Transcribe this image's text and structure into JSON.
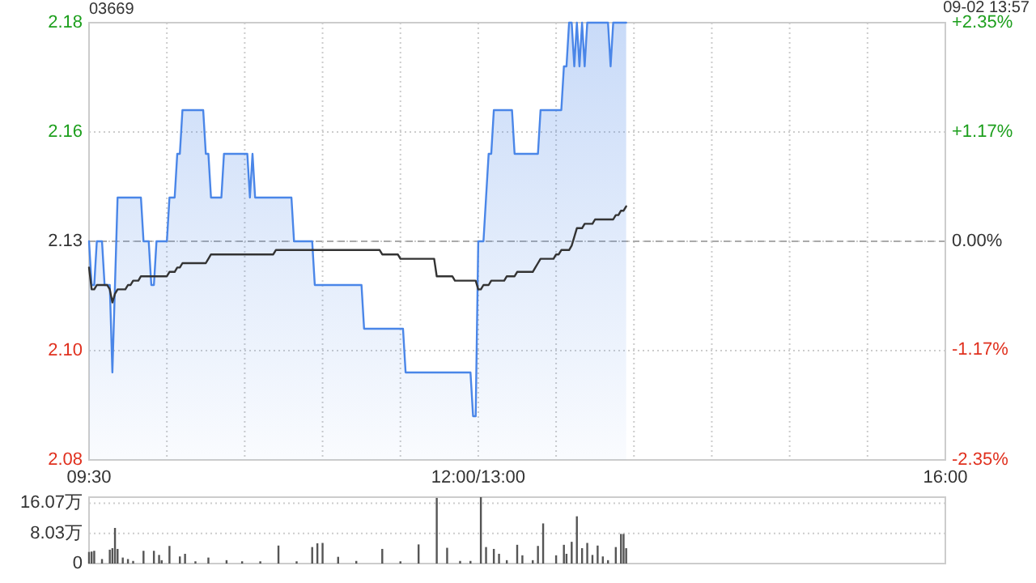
{
  "chart_data": [
    {
      "type": "area",
      "title": "03669",
      "subtitle": "09-02 13:57",
      "categories": [
        "09:30",
        null,
        null,
        null,
        null,
        null,
        null,
        null,
        null,
        null,
        null,
        null,
        null,
        null,
        null,
        null,
        null,
        null,
        null,
        null,
        null,
        null,
        null,
        null,
        null,
        null,
        null,
        null,
        null,
        null,
        null,
        null,
        null,
        null,
        null,
        null,
        null,
        null,
        null,
        null,
        null,
        null,
        null,
        null,
        null,
        null,
        null,
        null,
        null,
        null,
        null,
        null,
        null,
        null,
        null,
        null,
        null,
        null,
        null,
        null,
        null,
        null,
        null,
        null,
        null,
        null,
        null,
        null,
        null,
        null,
        null,
        null,
        null,
        null,
        null,
        null,
        null,
        null,
        null,
        null,
        null,
        null,
        null,
        null,
        null,
        null,
        null,
        null,
        null,
        null,
        null,
        null,
        null,
        null,
        null,
        null,
        null,
        null,
        null,
        null,
        null,
        null,
        null,
        null,
        null,
        null,
        null,
        null,
        null,
        null,
        null,
        null,
        null,
        null,
        null,
        null,
        null,
        null,
        null,
        null,
        null,
        null,
        null,
        null,
        null,
        null,
        null,
        null,
        null,
        null,
        null,
        null,
        null,
        null,
        null,
        null,
        null,
        null,
        null,
        null,
        null,
        null,
        null,
        null,
        null,
        null,
        null,
        null,
        null,
        null,
        "12:00/13:00",
        null,
        null,
        null,
        null,
        null,
        null,
        null,
        null,
        null,
        null,
        null,
        null,
        null,
        null,
        null,
        null,
        null,
        null,
        null,
        null,
        null,
        null,
        null,
        null,
        null,
        null,
        null,
        null,
        null,
        null,
        null,
        null,
        null,
        null,
        null,
        null,
        null,
        null,
        null,
        null,
        null,
        null,
        null,
        null,
        null,
        null,
        null,
        null,
        null,
        null,
        null,
        null,
        null,
        null,
        null,
        null,
        null,
        null,
        null,
        null,
        null,
        null,
        null,
        null,
        null,
        null,
        null,
        null,
        null,
        null,
        null,
        null,
        null,
        null,
        null,
        null,
        null,
        null,
        null,
        null,
        null,
        null,
        null,
        null,
        null,
        null,
        null,
        null,
        null,
        null,
        null,
        null,
        null,
        null,
        null,
        null,
        null,
        null,
        null,
        null,
        null,
        null,
        null,
        null,
        null,
        null,
        null,
        null,
        null,
        null,
        null,
        null,
        null,
        null,
        null,
        null,
        null,
        null,
        null,
        null,
        null,
        null,
        null,
        null,
        null,
        null,
        null,
        null,
        null,
        null,
        null,
        null,
        null,
        null,
        null,
        null,
        null,
        null,
        null,
        null,
        null,
        null,
        null,
        null,
        null,
        null,
        null,
        null,
        null,
        null,
        null,
        null,
        null,
        null,
        null,
        null,
        null,
        null,
        null,
        null,
        null,
        null,
        null,
        null,
        null,
        null,
        null,
        null,
        null,
        null,
        null,
        null,
        null,
        null,
        null,
        null,
        null,
        null,
        null,
        "16:00"
      ],
      "ylim": [
        2.08,
        2.18
      ],
      "yticks": [
        2.08,
        {
          "value": 2.105,
          "label": "2.10"
        },
        2.13,
        {
          "value": 2.155,
          "label": "2.16"
        },
        2.18
      ],
      "y2lim": [
        -2.35,
        2.35
      ],
      "y2ticks": [
        {
          "value": -2.35,
          "label": "-2.35%"
        },
        {
          "value": -1.17,
          "label": "-1.17%"
        },
        {
          "value": 0,
          "label": "0.00%"
        },
        {
          "value": 1.17,
          "label": "+1.17%"
        },
        {
          "value": 2.35,
          "label": "+2.35%"
        }
      ],
      "grid": true,
      "ref_lines": [
        {
          "axis": "y",
          "value": 2.13,
          "color": "#aaaaaa",
          "line_style": "dashed"
        }
      ],
      "series": [
        {
          "color": "#4a86e8",
          "values": [
            2.13,
            2.12,
            2.12,
            2.13,
            2.13,
            2.13,
            2.12,
            2.12,
            2.12,
            2.1,
            2.12,
            2.14,
            2.14,
            2.14,
            2.14,
            2.14,
            2.14,
            2.14,
            2.14,
            2.14,
            2.14,
            2.13,
            2.13,
            2.13,
            2.12,
            2.12,
            2.13,
            2.13,
            2.13,
            2.13,
            2.13,
            2.14,
            2.14,
            2.14,
            2.15,
            2.15,
            2.16,
            2.16,
            2.16,
            2.16,
            2.16,
            2.16,
            2.16,
            2.16,
            2.16,
            2.15,
            2.15,
            2.14,
            2.14,
            2.14,
            2.14,
            2.14,
            2.15,
            2.15,
            2.15,
            2.15,
            2.15,
            2.15,
            2.15,
            2.15,
            2.15,
            2.15,
            2.14,
            2.15,
            2.14,
            2.14,
            2.14,
            2.14,
            2.14,
            2.14,
            2.14,
            2.14,
            2.14,
            2.14,
            2.14,
            2.14,
            2.14,
            2.14,
            2.14,
            2.13,
            2.13,
            2.13,
            2.13,
            2.13,
            2.13,
            2.13,
            2.13,
            2.12,
            2.12,
            2.12,
            2.12,
            2.12,
            2.12,
            2.12,
            2.12,
            2.12,
            2.12,
            2.12,
            2.12,
            2.12,
            2.12,
            2.12,
            2.12,
            2.12,
            2.12,
            2.12,
            2.11,
            2.11,
            2.11,
            2.11,
            2.11,
            2.11,
            2.11,
            2.11,
            2.11,
            2.11,
            2.11,
            2.11,
            2.11,
            2.11,
            2.11,
            2.11,
            2.1,
            2.1,
            2.1,
            2.1,
            2.1,
            2.1,
            2.1,
            2.1,
            2.1,
            2.1,
            2.1,
            2.1,
            2.1,
            2.1,
            2.1,
            2.1,
            2.1,
            2.1,
            2.1,
            2.1,
            2.1,
            2.1,
            2.1,
            2.1,
            2.1,
            2.1,
            2.09,
            2.09,
            2.13,
            2.13,
            2.13,
            2.14,
            2.15,
            2.15,
            2.16,
            2.16,
            2.16,
            2.16,
            2.16,
            2.16,
            2.16,
            2.16,
            2.15,
            2.15,
            2.15,
            2.15,
            2.15,
            2.15,
            2.15,
            2.15,
            2.15,
            2.15,
            2.16,
            2.16,
            2.16,
            2.16,
            2.16,
            2.16,
            2.16,
            2.16,
            2.16,
            2.17,
            2.17,
            2.18,
            2.18,
            2.17,
            2.18,
            2.17,
            2.18,
            2.17,
            2.18,
            2.18,
            2.18,
            2.18,
            2.18,
            2.18,
            2.18,
            2.18,
            2.18,
            2.17,
            2.18,
            2.18,
            2.18,
            2.18,
            2.18,
            2.18,
            null,
            null,
            null,
            null,
            null,
            null,
            null,
            null,
            null,
            null,
            null,
            null,
            null,
            null,
            null,
            null,
            null,
            null,
            null,
            null,
            null,
            null,
            null,
            null,
            null,
            null,
            null,
            null,
            null,
            null,
            null,
            null,
            null,
            null,
            null,
            null,
            null,
            null,
            null,
            null,
            null,
            null,
            null,
            null,
            null,
            null,
            null,
            null,
            null,
            null,
            null,
            null,
            null,
            null,
            null,
            null,
            null,
            null,
            null,
            null,
            null,
            null,
            null,
            null,
            null,
            null,
            null,
            null,
            null,
            null,
            null,
            null,
            null,
            null,
            null,
            null,
            null,
            null,
            null,
            null,
            null,
            null,
            null,
            null,
            null,
            null,
            null,
            null,
            null,
            null,
            null,
            null,
            null,
            null,
            null,
            null,
            null,
            null,
            null,
            null,
            null,
            null,
            null,
            null,
            null,
            null,
            null,
            null,
            null,
            null,
            null,
            null,
            null,
            null,
            null,
            null,
            null,
            null,
            null,
            null,
            null,
            null,
            null
          ]
        },
        {
          "type": "line",
          "color": "#333333",
          "values": [
            2.124,
            2.119,
            2.119,
            2.12,
            2.12,
            2.12,
            2.12,
            2.12,
            2.119,
            2.116,
            2.118,
            2.119,
            2.119,
            2.119,
            2.119,
            2.12,
            2.12,
            2.121,
            2.121,
            2.121,
            2.122,
            2.122,
            2.122,
            2.122,
            2.122,
            2.122,
            2.122,
            2.122,
            2.122,
            2.122,
            2.122,
            2.123,
            2.123,
            2.123,
            2.124,
            2.124,
            2.125,
            2.125,
            2.125,
            2.125,
            2.125,
            2.125,
            2.125,
            2.125,
            2.125,
            2.125,
            2.126,
            2.127,
            2.127,
            2.127,
            2.127,
            2.127,
            2.127,
            2.127,
            2.127,
            2.127,
            2.127,
            2.127,
            2.127,
            2.127,
            2.127,
            2.127,
            2.127,
            2.127,
            2.127,
            2.127,
            2.127,
            2.127,
            2.127,
            2.127,
            2.127,
            2.127,
            2.128,
            2.128,
            2.128,
            2.128,
            2.128,
            2.128,
            2.128,
            2.128,
            2.128,
            2.128,
            2.128,
            2.128,
            2.128,
            2.128,
            2.128,
            2.128,
            2.128,
            2.128,
            2.128,
            2.128,
            2.128,
            2.128,
            2.128,
            2.128,
            2.128,
            2.128,
            2.128,
            2.128,
            2.128,
            2.128,
            2.128,
            2.128,
            2.128,
            2.128,
            2.128,
            2.128,
            2.128,
            2.128,
            2.128,
            2.128,
            2.128,
            2.127,
            2.127,
            2.127,
            2.127,
            2.127,
            2.127,
            2.127,
            2.126,
            2.126,
            2.126,
            2.126,
            2.126,
            2.126,
            2.126,
            2.126,
            2.126,
            2.126,
            2.126,
            2.126,
            2.126,
            2.126,
            2.122,
            2.122,
            2.122,
            2.122,
            2.122,
            2.122,
            2.122,
            2.121,
            2.121,
            2.121,
            2.121,
            2.121,
            2.121,
            2.121,
            2.121,
            2.121,
            2.119,
            2.119,
            2.12,
            2.12,
            2.12,
            2.121,
            2.121,
            2.121,
            2.121,
            2.121,
            2.121,
            2.122,
            2.122,
            2.122,
            2.122,
            2.123,
            2.123,
            2.123,
            2.123,
            2.123,
            2.123,
            2.123,
            2.124,
            2.125,
            2.126,
            2.126,
            2.126,
            2.126,
            2.126,
            2.126,
            2.127,
            2.127,
            2.128,
            2.128,
            2.128,
            2.128,
            2.129,
            2.131,
            2.133,
            2.133,
            2.133,
            2.134,
            2.134,
            2.134,
            2.134,
            2.135,
            2.135,
            2.135,
            2.135,
            2.135,
            2.135,
            2.135,
            2.135,
            2.136,
            2.136,
            2.137,
            2.137,
            2.138,
            null,
            null,
            null,
            null,
            null,
            null,
            null,
            null,
            null,
            null,
            null,
            null,
            null,
            null,
            null,
            null,
            null,
            null,
            null,
            null,
            null,
            null,
            null,
            null,
            null,
            null,
            null,
            null,
            null,
            null,
            null,
            null,
            null,
            null,
            null,
            null,
            null,
            null,
            null,
            null,
            null,
            null,
            null,
            null,
            null,
            null,
            null,
            null,
            null,
            null,
            null,
            null,
            null,
            null,
            null,
            null,
            null,
            null,
            null,
            null,
            null,
            null,
            null,
            null,
            null,
            null,
            null,
            null,
            null,
            null,
            null,
            null,
            null,
            null,
            null,
            null,
            null,
            null,
            null,
            null,
            null,
            null,
            null,
            null,
            null,
            null,
            null,
            null,
            null,
            null,
            null,
            null,
            null,
            null,
            null,
            null,
            null,
            null,
            null,
            null,
            null,
            null,
            null,
            null,
            null,
            null,
            null,
            null,
            null,
            null,
            null,
            null,
            null,
            null,
            null,
            null,
            null,
            null,
            null,
            null,
            null,
            null,
            null
          ]
        }
      ]
    },
    {
      "type": "bar",
      "ylim": [
        0,
        17.7
      ],
      "yticks": [
        0,
        {
          "value": 8.03,
          "label": "8.03万"
        },
        {
          "value": 16.07,
          "label": "16.07万"
        }
      ],
      "grid": "y",
      "tick_labels": "y",
      "categories": [
        null,
        null,
        null,
        null,
        null,
        null,
        null,
        null,
        null,
        null,
        null,
        null,
        null,
        null,
        null,
        null,
        null,
        null,
        null,
        null,
        null,
        null,
        null,
        null,
        null,
        null,
        null,
        null,
        null,
        null,
        null,
        null,
        null,
        null,
        null,
        null,
        null,
        null,
        null,
        null,
        null,
        null,
        null,
        null,
        null,
        null,
        null,
        null,
        null,
        null,
        null,
        null,
        null,
        null,
        null,
        null,
        null,
        null,
        null,
        null,
        null,
        null,
        null,
        null,
        null,
        null,
        null,
        null,
        null,
        null,
        null,
        null,
        null,
        null,
        null,
        null,
        null,
        null,
        null,
        null,
        null,
        null,
        null,
        null,
        null,
        null,
        null,
        null,
        null,
        null,
        null,
        null,
        null,
        null,
        null,
        null,
        null,
        null,
        null,
        null,
        null,
        null,
        null,
        null,
        null,
        null,
        null,
        null,
        null,
        null,
        null,
        null,
        null,
        null,
        null,
        null,
        null,
        null,
        null,
        null,
        null,
        null,
        null,
        null,
        null,
        null,
        null,
        null,
        null,
        null,
        null,
        null,
        null,
        null,
        null,
        null,
        null,
        null,
        null,
        null,
        null,
        null,
        null,
        null,
        null,
        null,
        null,
        null,
        null,
        null,
        null,
        null,
        null,
        null,
        null,
        null,
        null,
        null,
        null,
        null,
        null,
        null,
        null,
        null,
        null,
        null,
        null,
        null,
        null,
        null,
        null,
        null,
        null,
        null,
        null,
        null,
        null,
        null,
        null,
        null,
        null,
        null,
        null,
        null,
        null,
        null,
        null,
        null,
        null,
        null,
        null,
        null,
        null,
        null,
        null,
        null,
        null,
        null,
        null,
        null,
        null,
        null,
        null,
        null,
        null,
        null,
        null,
        null,
        null,
        null,
        null,
        null,
        null,
        null,
        null,
        null,
        null,
        null,
        null,
        null,
        null,
        null,
        null,
        null,
        null,
        null,
        null,
        null,
        null,
        null,
        null,
        null,
        null,
        null,
        null,
        null,
        null,
        null,
        null,
        null,
        null,
        null,
        null,
        null,
        null,
        null,
        null,
        null,
        null,
        null,
        null,
        null,
        null,
        null,
        null,
        null,
        null,
        null,
        null,
        null,
        null,
        null,
        null,
        null,
        null,
        null,
        null,
        null,
        null,
        null,
        null,
        null,
        null,
        null,
        null,
        null,
        null,
        null,
        null,
        null,
        null,
        null,
        null,
        null,
        null,
        null,
        null,
        null,
        null,
        null,
        null,
        null,
        null,
        null,
        null,
        null,
        null,
        null,
        null,
        null,
        null,
        null,
        null,
        null,
        null,
        null,
        null,
        null,
        null,
        null,
        null,
        null,
        null,
        null,
        null,
        null,
        null,
        null,
        null,
        null,
        null,
        null,
        null,
        null,
        null,
        null,
        null,
        null,
        null,
        null,
        null
      ],
      "series": [
        {
          "color": "#555555",
          "values": [
            3.1,
            3.2,
            3.4,
            null,
            null,
            1.2,
            null,
            null,
            3.7,
            4.1,
            9.5,
            3.9,
            null,
            1.6,
            null,
            1.2,
            null,
            0.7,
            null,
            null,
            null,
            3.4,
            null,
            null,
            null,
            3.4,
            null,
            2.3,
            0.9,
            null,
            null,
            4.7,
            null,
            null,
            null,
            1.9,
            null,
            2.6,
            null,
            null,
            null,
            0.6,
            null,
            null,
            null,
            null,
            1.6,
            null,
            null,
            null,
            null,
            null,
            null,
            0.9,
            null,
            null,
            null,
            null,
            null,
            0.6,
            null,
            null,
            null,
            null,
            null,
            null,
            0.6,
            null,
            null,
            null,
            null,
            null,
            null,
            4.8,
            null,
            null,
            null,
            null,
            null,
            null,
            0.6,
            null,
            null,
            null,
            null,
            null,
            4.4,
            null,
            5.4,
            null,
            5.5,
            null,
            null,
            null,
            null,
            null,
            1.8,
            null,
            null,
            null,
            null,
            null,
            null,
            0.7,
            null,
            null,
            null,
            null,
            null,
            null,
            null,
            null,
            null,
            3.9,
            null,
            null,
            null,
            null,
            null,
            null,
            0.6,
            null,
            null,
            null,
            null,
            null,
            null,
            5.1,
            null,
            null,
            null,
            null,
            null,
            null,
            17.5,
            null,
            null,
            null,
            4.2,
            null,
            null,
            null,
            null,
            0.7,
            null,
            null,
            null,
            0.7,
            null,
            null,
            null,
            17.7,
            null,
            4.4,
            null,
            null,
            3.9,
            null,
            2.6,
            null,
            null,
            0.9,
            null,
            null,
            null,
            5.0,
            null,
            2.2,
            null,
            null,
            null,
            0.9,
            null,
            4.7,
            null,
            10.7,
            null,
            null,
            null,
            null,
            2.2,
            null,
            null,
            5.0,
            2.6,
            null,
            5.8,
            null,
            12.6,
            null,
            4.1,
            null,
            5.5,
            null,
            2.3,
            null,
            4.8,
            null,
            1.9,
            null,
            0.9,
            null,
            null,
            4.4,
            null,
            7.9,
            7.9,
            4.1,
            null,
            null,
            null,
            null,
            null,
            null,
            null,
            null,
            null,
            null,
            null,
            null,
            null,
            null,
            null,
            null,
            null,
            null,
            null,
            null,
            null,
            null,
            null,
            null,
            null,
            null,
            null,
            null,
            null,
            null,
            null,
            null,
            null,
            null,
            null,
            null,
            null,
            null,
            null,
            null,
            null,
            null,
            null,
            null,
            null,
            null,
            null,
            null,
            null,
            null,
            null,
            null,
            null,
            null,
            null,
            null,
            null,
            null,
            null,
            null,
            null,
            null,
            null,
            null,
            null,
            null,
            null,
            null,
            null,
            null,
            null,
            null,
            null,
            null,
            null,
            null,
            null,
            null,
            null,
            null,
            null,
            null,
            null,
            null,
            null,
            null,
            null,
            null,
            null,
            null,
            null,
            null,
            null,
            null,
            null,
            null,
            null,
            null,
            null,
            null,
            null,
            null,
            null,
            null,
            null,
            null,
            null,
            null,
            null,
            null,
            null,
            null,
            null,
            null,
            null,
            null,
            null,
            null,
            null,
            null,
            null,
            null,
            null
          ]
        }
      ]
    }
  ]
}
